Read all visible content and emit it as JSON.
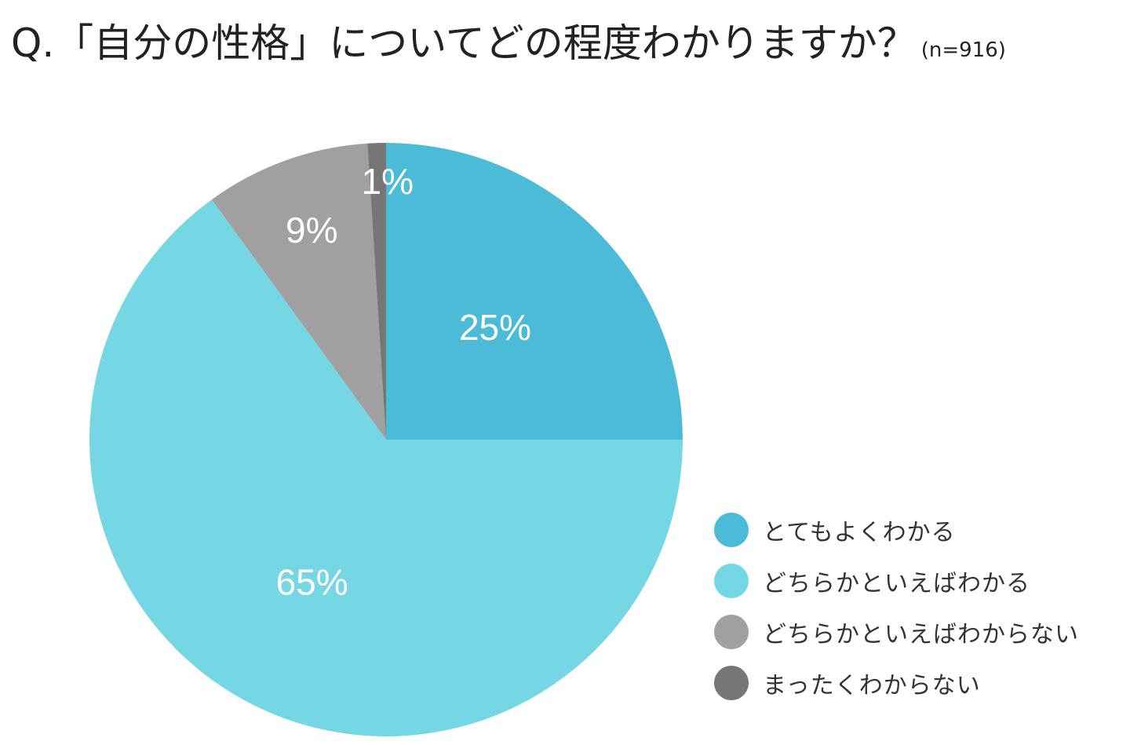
{
  "chart_data": {
    "type": "pie",
    "title": "Q.「自分の性格」についてどの程度わかりますか？",
    "sample_size": "(n=916)",
    "slices": [
      {
        "name": "とてもよくわかる",
        "value": 25,
        "label": "25%",
        "color": "#4bbbd8"
      },
      {
        "name": "どちらかといえばわかる",
        "value": 65,
        "label": "65%",
        "color": "#76d7e4"
      },
      {
        "name": "どちらかといえばわからない",
        "value": 9,
        "label": "9%",
        "color": "#a0a0a0"
      },
      {
        "name": "まったくわからない",
        "value": 1,
        "label": "1%",
        "color": "#767676"
      }
    ],
    "legend_position": "bottom-right"
  }
}
